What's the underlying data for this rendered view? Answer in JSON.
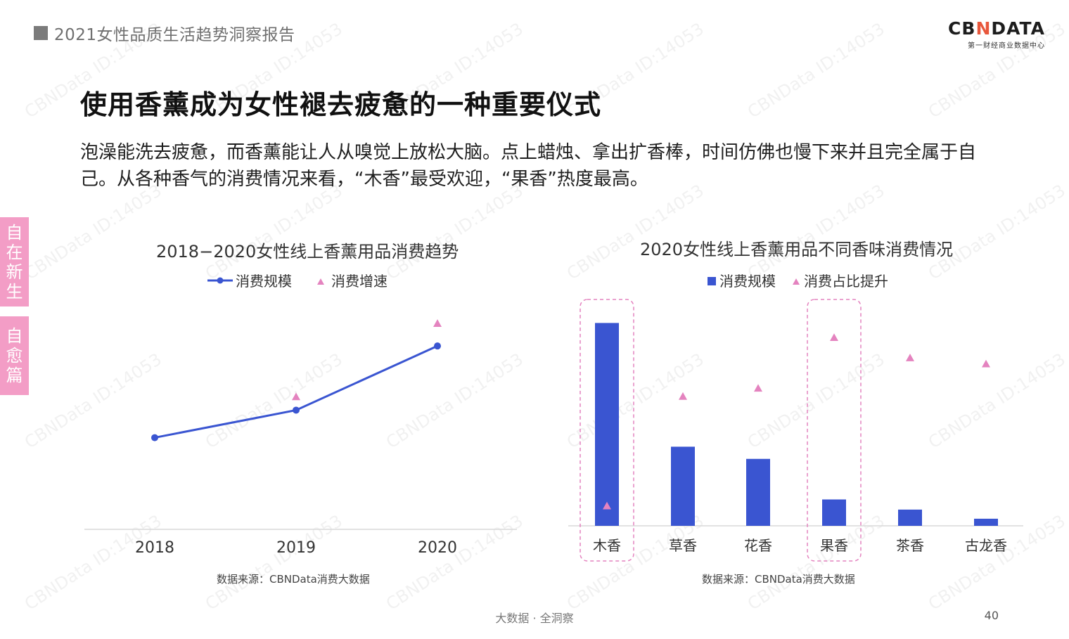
{
  "header": {
    "report_title": "2021女性品质生活趋势洞察报告"
  },
  "logo": {
    "main_a": "CB",
    "main_x": "N",
    "main_b": "DATA",
    "sub": "第一财经商业数据中心"
  },
  "page_title": "使用香薰成为女性褪去疲惫的一种重要仪式",
  "intro": "泡澡能洗去疲惫，而香薰能让人从嗅觉上放松大脑。点上蜡烛、拿出扩香棒，时间仿佛也慢下来并且完全属于自己。从各种香气的消费情况来看，“木香”最受欢迎，“果香”热度最高。",
  "side_tabs": [
    {
      "chars": [
        "自",
        "在",
        "新",
        "生"
      ]
    },
    {
      "chars": [
        "自",
        "愈",
        "篇"
      ]
    }
  ],
  "watermark": "CBNData ID:14053",
  "colors": {
    "series": "#3a55d1",
    "accent": "#e483bf",
    "tab": "#f39dc6"
  },
  "chart_data": [
    {
      "type": "line",
      "title": "2018−2020女性线上香薰用品消费趋势",
      "categories": [
        "2018",
        "2019",
        "2020"
      ],
      "series": [
        {
          "name": "消费规模",
          "kind": "line",
          "values": [
            1.0,
            1.3,
            2.0
          ]
        },
        {
          "name": "消费增速",
          "kind": "marker",
          "values": [
            null,
            1.45,
            2.25
          ]
        }
      ],
      "ylim": [
        0,
        2.4
      ],
      "legend": "top-center",
      "grid": false,
      "source": "数据来源：CBNData消费大数据"
    },
    {
      "type": "bar",
      "title": "2020女性线上香薰用品不同香味消费情况",
      "categories": [
        "木香",
        "草香",
        "花香",
        "果香",
        "茶香",
        "古龙香"
      ],
      "series": [
        {
          "name": "消费规模",
          "kind": "bar",
          "values": [
            100,
            39,
            33,
            13,
            8,
            3.5
          ]
        },
        {
          "name": "消费占比提升",
          "kind": "marker",
          "values": [
            10,
            64,
            68,
            93,
            83,
            80
          ]
        }
      ],
      "ylim": [
        0,
        105
      ],
      "highlighted": [
        "木香",
        "果香"
      ],
      "legend": "top-center",
      "grid": false,
      "source": "数据来源：CBNData消费大数据"
    }
  ],
  "footer": {
    "center": "大数据 · 全洞察",
    "page_number": "40"
  }
}
